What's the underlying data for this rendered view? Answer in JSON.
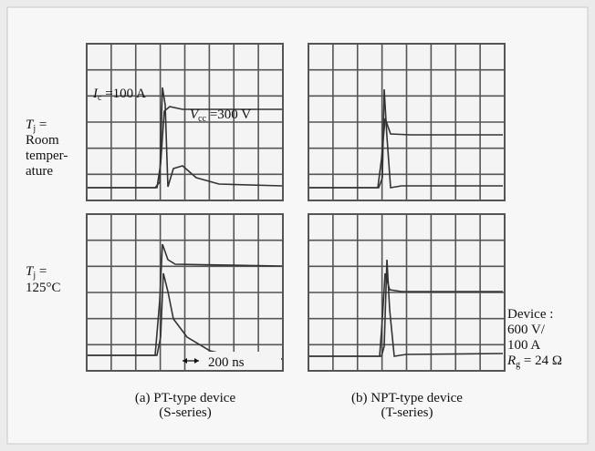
{
  "rows": [
    {
      "label_symbol": "T",
      "label_sub": "j",
      "label_lines": [
        " =",
        "Room",
        "temper-",
        "ature"
      ],
      "current": {
        "symbol": "I",
        "sub": "c",
        "text": " =100 A"
      },
      "voltage": {
        "symbol": "V",
        "sub": "cc",
        "text": " =300 V"
      }
    },
    {
      "label_symbol": "T",
      "label_sub": "j",
      "label_lines": [
        " =",
        "125°C"
      ],
      "time_scale": "200 ns"
    }
  ],
  "captions": [
    {
      "line1": "(a) PT-type device",
      "line2": "(S-series)"
    },
    {
      "line1": "(b) NPT-type device",
      "line2": "(T-series)"
    }
  ],
  "device": {
    "lines": [
      "Device :",
      "600 V/",
      "100 A"
    ],
    "rg_symbol": "R",
    "rg_sub": "g",
    "rg_text": " = 24 Ω"
  }
}
